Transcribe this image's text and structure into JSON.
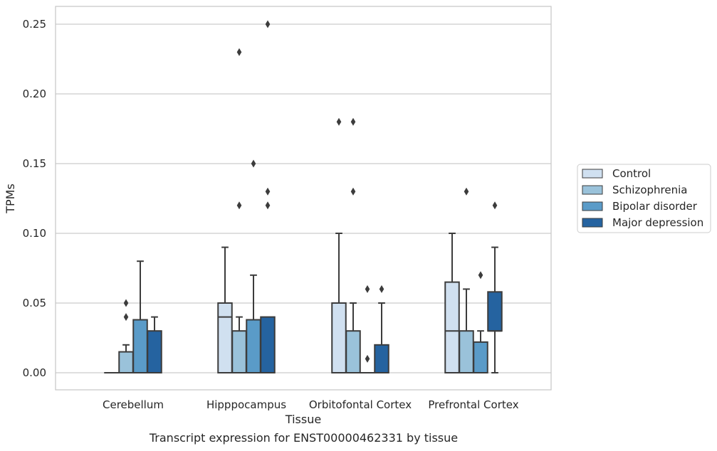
{
  "caption": "Transcript expression for ENST00000462331 by tissue",
  "chart_data": {
    "type": "boxplot",
    "xlabel": "Tissue",
    "ylabel": "TPMs",
    "ylim": [
      -0.012,
      0.263
    ],
    "yticks": [
      "0.00",
      "0.05",
      "0.10",
      "0.15",
      "0.20",
      "0.25"
    ],
    "ytick_values": [
      0,
      0.05,
      0.1,
      0.15,
      0.2,
      0.25
    ],
    "grid": true,
    "legend_position": "right",
    "categories": [
      "Cerebellum",
      "Hipppocampus",
      "Orbitofontal Cortex",
      "Prefrontal Cortex"
    ],
    "series": [
      {
        "name": "Control",
        "color": "#d0e0f0",
        "boxes": [
          {
            "whislo": 0,
            "q1": 0,
            "med": 0,
            "q3": 0,
            "whishi": 0,
            "fliers": []
          },
          {
            "whislo": 0,
            "q1": 0,
            "med": 0.04,
            "q3": 0.05,
            "whishi": 0.09,
            "fliers": []
          },
          {
            "whislo": 0,
            "q1": 0,
            "med": 0,
            "q3": 0.05,
            "whishi": 0.1,
            "fliers": [
              0.18
            ]
          },
          {
            "whislo": 0,
            "q1": 0,
            "med": 0.03,
            "q3": 0.065,
            "whishi": 0.1,
            "fliers": []
          }
        ]
      },
      {
        "name": "Schizophrenia",
        "color": "#9ac2da",
        "boxes": [
          {
            "whislo": 0,
            "q1": 0,
            "med": 0,
            "q3": 0.015,
            "whishi": 0.02,
            "fliers": [
              0.04,
              0.05
            ]
          },
          {
            "whislo": 0,
            "q1": 0,
            "med": 0,
            "q3": 0.03,
            "whishi": 0.04,
            "fliers": [
              0.12,
              0.23
            ]
          },
          {
            "whislo": 0,
            "q1": 0,
            "med": 0,
            "q3": 0.03,
            "whishi": 0.05,
            "fliers": [
              0.13,
              0.18
            ]
          },
          {
            "whislo": 0,
            "q1": 0,
            "med": 0,
            "q3": 0.03,
            "whishi": 0.06,
            "fliers": [
              0.13
            ]
          }
        ]
      },
      {
        "name": "Bipolar disorder",
        "color": "#5a9bc8",
        "boxes": [
          {
            "whislo": 0,
            "q1": 0,
            "med": 0,
            "q3": 0.038,
            "whishi": 0.08,
            "fliers": []
          },
          {
            "whislo": 0,
            "q1": 0,
            "med": 0,
            "q3": 0.038,
            "whishi": 0.07,
            "fliers": [
              0.15
            ]
          },
          {
            "whislo": 0,
            "q1": 0,
            "med": 0,
            "q3": 0,
            "whishi": 0,
            "fliers": [
              0.01,
              0.06
            ]
          },
          {
            "whislo": 0,
            "q1": 0,
            "med": 0,
            "q3": 0.022,
            "whishi": 0.03,
            "fliers": [
              0.07
            ]
          }
        ]
      },
      {
        "name": "Major depression",
        "color": "#2563a0",
        "boxes": [
          {
            "whislo": 0,
            "q1": 0,
            "med": 0,
            "q3": 0.03,
            "whishi": 0.04,
            "fliers": []
          },
          {
            "whislo": 0,
            "q1": 0,
            "med": 0,
            "q3": 0.04,
            "whishi": 0.04,
            "fliers": [
              0.12,
              0.13,
              0.25
            ]
          },
          {
            "whislo": 0,
            "q1": 0,
            "med": 0,
            "q3": 0.02,
            "whishi": 0.05,
            "fliers": [
              0.06
            ]
          },
          {
            "whislo": 0,
            "q1": 0.03,
            "med": 0.03,
            "q3": 0.058,
            "whishi": 0.09,
            "fliers": [
              0.12
            ]
          }
        ]
      }
    ]
  }
}
